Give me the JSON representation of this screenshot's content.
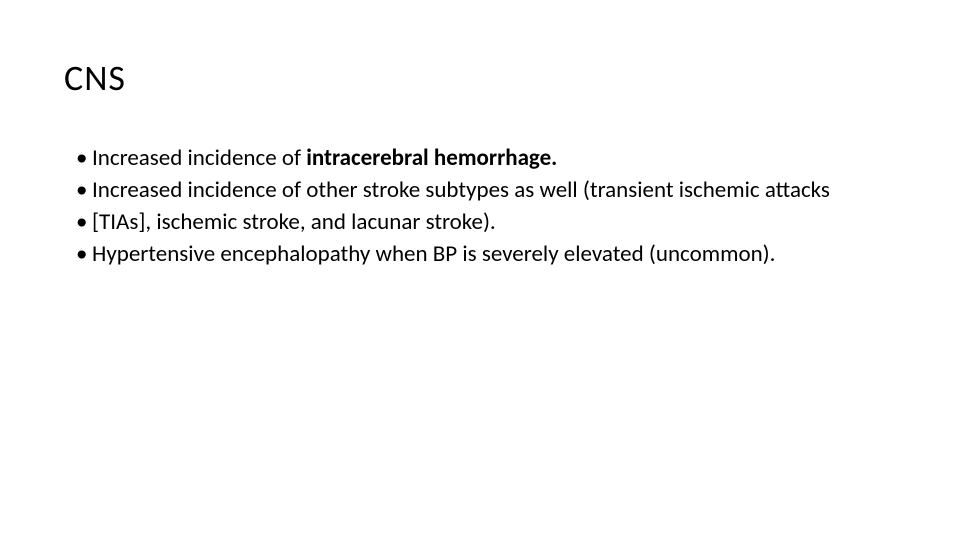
{
  "slide": {
    "title": "CNS",
    "bullets": [
      {
        "prefix": "Increased incidence of ",
        "bold": "intracerebral hemorrhage.",
        "suffix": ""
      },
      {
        "prefix": "Increased incidence of other stroke subtypes as well (transient ischemic attacks",
        "bold": "",
        "suffix": ""
      },
      {
        "prefix": "[TIAs], ischemic stroke, and lacunar stroke).",
        "bold": "",
        "suffix": ""
      },
      {
        "prefix": "Hypertensive encephalopathy when BP is severely elevated (uncommon).",
        "bold": "",
        "suffix": ""
      }
    ],
    "styling": {
      "background_color": "#ffffff",
      "text_color": "#000000",
      "title_fontsize": 36,
      "body_fontsize": 23,
      "font_family": "Calibri",
      "title_letter_spacing": 1,
      "line_height": 1.3
    }
  }
}
